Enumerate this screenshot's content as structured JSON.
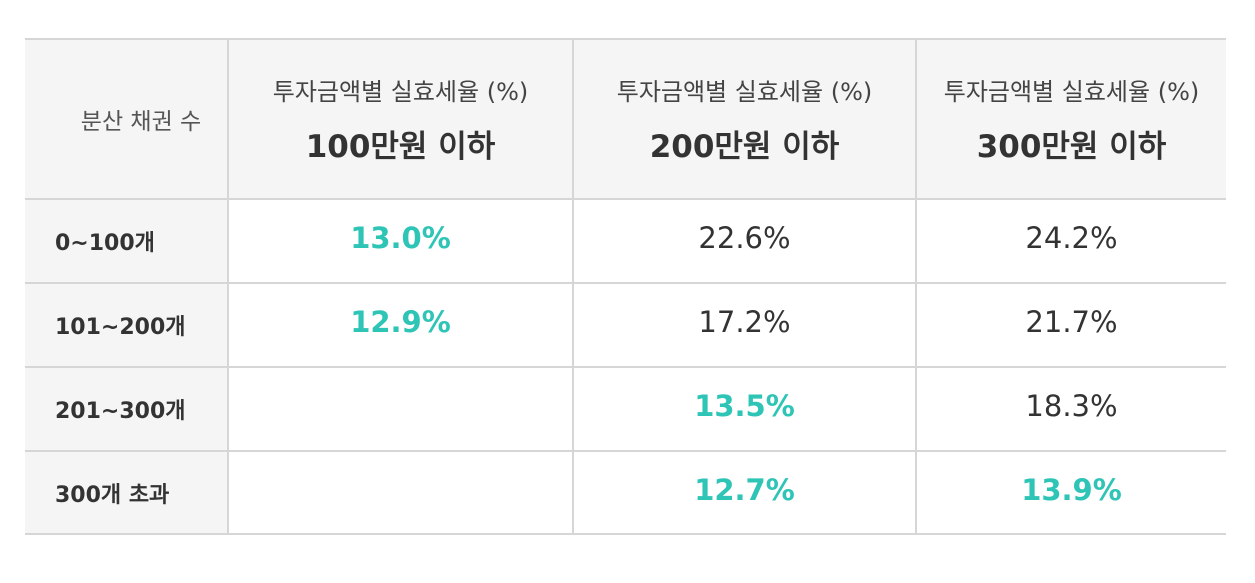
{
  "table": {
    "corner_label": "분산 채권 수",
    "columns": [
      {
        "sub": "투자금액별 실효세율 (%)",
        "main": "100만원 이하"
      },
      {
        "sub": "투자금액별 실효세율 (%)",
        "main": "200만원 이하"
      },
      {
        "sub": "투자금액별 실효세율 (%)",
        "main": "300만원 이하"
      }
    ],
    "rows": [
      {
        "label": "0~100개",
        "cells": [
          {
            "value": "13.0%",
            "highlight": true
          },
          {
            "value": "22.6%",
            "highlight": false
          },
          {
            "value": "24.2%",
            "highlight": false
          }
        ]
      },
      {
        "label": "101~200개",
        "cells": [
          {
            "value": "12.9%",
            "highlight": true
          },
          {
            "value": "17.2%",
            "highlight": false
          },
          {
            "value": "21.7%",
            "highlight": false
          }
        ]
      },
      {
        "label": "201~300개",
        "cells": [
          {
            "value": "",
            "highlight": false
          },
          {
            "value": "13.5%",
            "highlight": true
          },
          {
            "value": "18.3%",
            "highlight": false
          }
        ]
      },
      {
        "label": "300개 초과",
        "cells": [
          {
            "value": "",
            "highlight": false
          },
          {
            "value": "12.7%",
            "highlight": true
          },
          {
            "value": "13.9%",
            "highlight": true
          }
        ]
      }
    ]
  },
  "colors": {
    "highlight": "#2ec4b6",
    "text": "#333333",
    "header_bg": "#f5f5f5",
    "border": "#d6d6d6"
  }
}
